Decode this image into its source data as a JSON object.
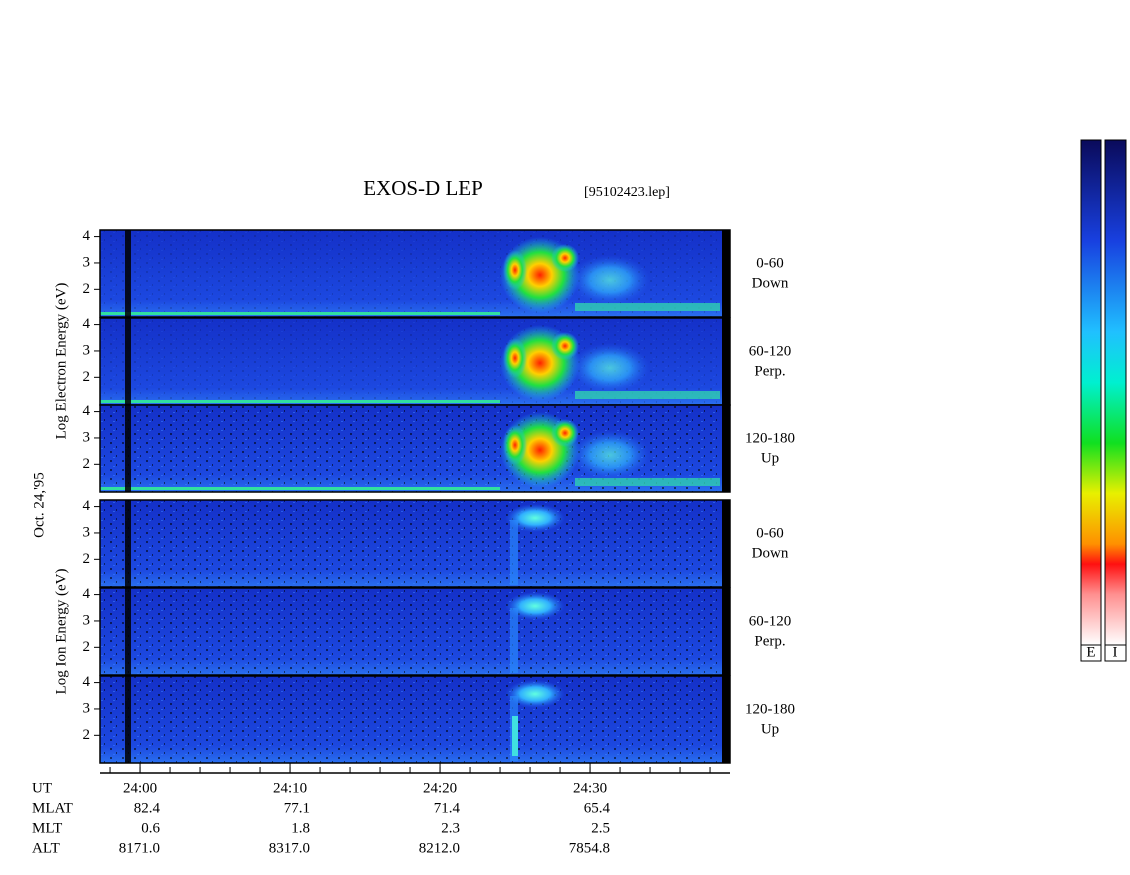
{
  "chart_data": {
    "type": "spectrogram",
    "title": "EXOS-D LEP",
    "file": "[95102423.lep]",
    "date_label": "Oct. 24,'95",
    "groups": [
      {
        "ylabel": "Log Electron Energy (eV)",
        "panels": [
          {
            "angle": "0-60",
            "direction": "Down"
          },
          {
            "angle": "60-120",
            "direction": "Perp."
          },
          {
            "angle": "120-180",
            "direction": "Up"
          }
        ]
      },
      {
        "ylabel": "Log Ion Energy (eV)",
        "panels": [
          {
            "angle": "0-60",
            "direction": "Down"
          },
          {
            "angle": "60-120",
            "direction": "Perp."
          },
          {
            "angle": "120-180",
            "direction": "Up"
          }
        ]
      }
    ],
    "ylim": [
      0.95,
      4.25
    ],
    "yticks": [
      2,
      3,
      4
    ],
    "xlim": [
      -2.67,
      39.33
    ],
    "xticks": [
      {
        "value": 0,
        "label": "24:00"
      },
      {
        "value": 10,
        "label": "24:10"
      },
      {
        "value": 20,
        "label": "24:20"
      },
      {
        "value": 30,
        "label": "24:30"
      }
    ],
    "xminorticks": [
      -2,
      0,
      2,
      4,
      6,
      8,
      10,
      12,
      14,
      16,
      18,
      20,
      22,
      24,
      26,
      28,
      30,
      32,
      34,
      36,
      38
    ],
    "ephemeris": {
      "ut_label": "UT",
      "rows": [
        {
          "label": "MLAT",
          "values": [
            "82.4",
            "77.1",
            "71.4",
            "65.4"
          ]
        },
        {
          "label": "MLT",
          "values": [
            "0.6",
            "1.8",
            "2.3",
            "2.5"
          ]
        },
        {
          "label": "ALT",
          "values": [
            "8171.0",
            "8317.0",
            "8212.0",
            "7854.8"
          ]
        }
      ]
    },
    "colorbar_labels": [
      "E",
      "I"
    ]
  }
}
